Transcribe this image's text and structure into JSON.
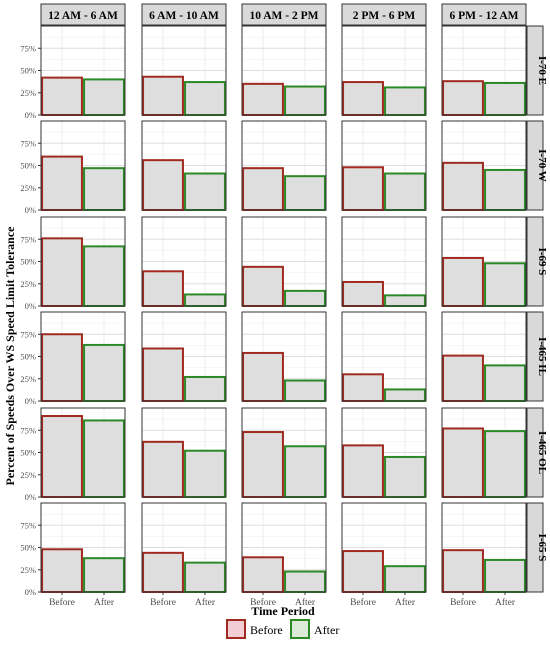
{
  "chart_data": {
    "type": "bar",
    "facet_columns": [
      "12 AM - 6 AM",
      "6 AM - 10 AM",
      "10 AM - 2 PM",
      "2 PM - 6 PM",
      "6 PM - 12 AM"
    ],
    "facet_rows": [
      "I-70 E",
      "I-70 W",
      "I-69 S",
      "I-465 IL",
      "I-465 OL",
      "I-65 S"
    ],
    "categories": [
      "Before",
      "After"
    ],
    "xlabel": "Time Period",
    "ylabel": "Percent of Speeds Over WS Speed Limit Tolerance",
    "ylim": [
      0,
      100
    ],
    "y_ticks": [
      0,
      25,
      50,
      75
    ],
    "y_tick_labels": [
      "0%",
      "25%",
      "50%",
      "75%"
    ],
    "grid": true,
    "legend": {
      "position": "bottom",
      "entries": [
        {
          "label": "Before",
          "border_color": "#a02a20",
          "fill_color": "#f2cdd6"
        },
        {
          "label": "After",
          "border_color": "#2b8a26",
          "fill_color": "#dcebd9"
        }
      ]
    },
    "bar_fill_color": "#dedede",
    "colors": {
      "Before": "#a02a20",
      "After": "#2b8a26"
    },
    "values": [
      [
        [
          42,
          40
        ],
        [
          43,
          37
        ],
        [
          35,
          32
        ],
        [
          37,
          31
        ],
        [
          38,
          36
        ]
      ],
      [
        [
          60,
          47
        ],
        [
          56,
          41
        ],
        [
          47,
          38
        ],
        [
          48,
          41
        ],
        [
          53,
          45
        ]
      ],
      [
        [
          76,
          67
        ],
        [
          39,
          13
        ],
        [
          44,
          17
        ],
        [
          27,
          12
        ],
        [
          54,
          48
        ]
      ],
      [
        [
          75,
          63
        ],
        [
          59,
          27
        ],
        [
          54,
          23
        ],
        [
          30,
          13
        ],
        [
          51,
          40
        ]
      ],
      [
        [
          91,
          86
        ],
        [
          62,
          52
        ],
        [
          73,
          57
        ],
        [
          58,
          45
        ],
        [
          77,
          74
        ]
      ],
      [
        [
          48,
          38
        ],
        [
          44,
          33
        ],
        [
          39,
          23
        ],
        [
          46,
          29
        ],
        [
          47,
          36
        ]
      ]
    ]
  }
}
